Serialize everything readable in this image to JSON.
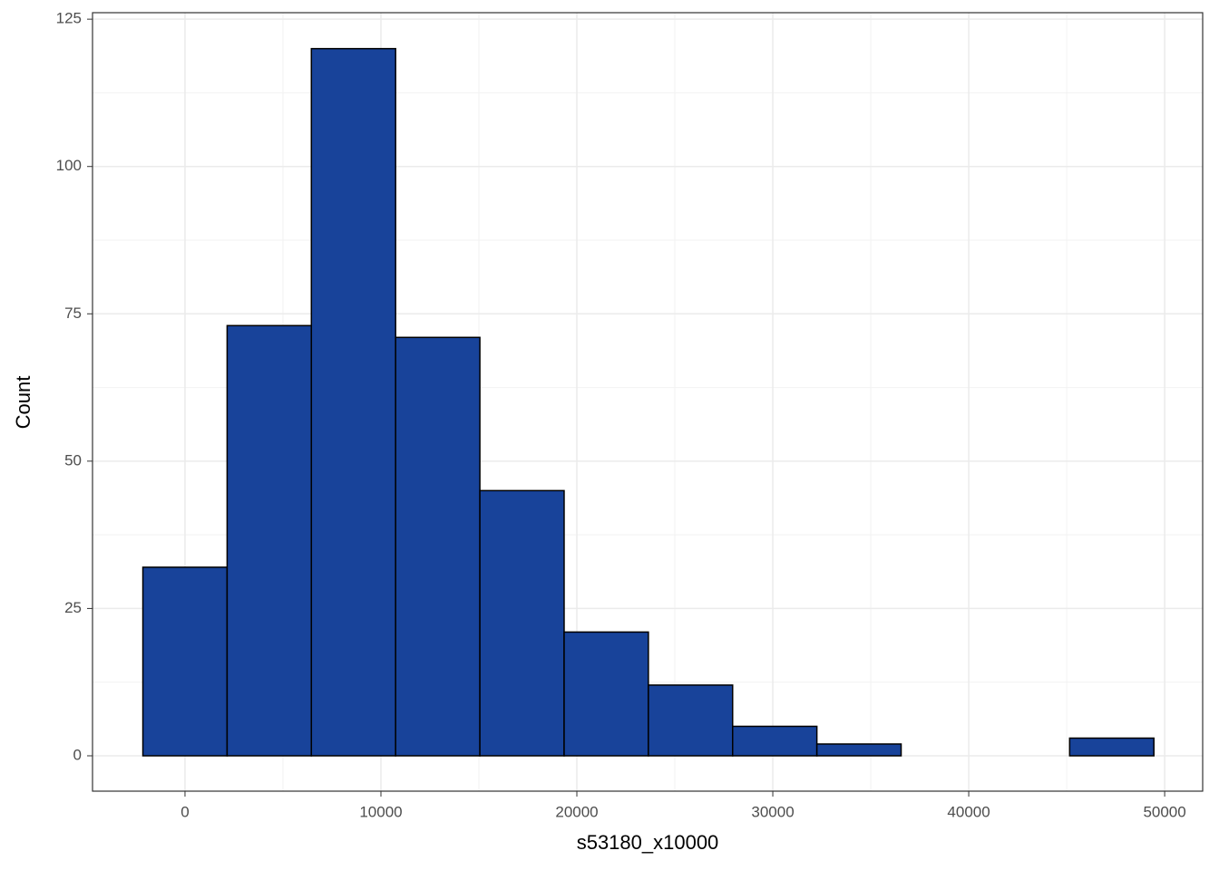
{
  "chart_data": {
    "type": "histogram",
    "x_label": "s53180_x10000",
    "y_label": "Count",
    "bins": [
      -2150,
      2150,
      6450,
      10750,
      15050,
      19350,
      23650,
      27950,
      32250,
      36550,
      40850,
      45150,
      49450
    ],
    "values": [
      32,
      73,
      120,
      71,
      45,
      21,
      12,
      5,
      2,
      0,
      0,
      3
    ],
    "color": "#18439a",
    "edgecolor": "#000000",
    "xlim": [
      -4720,
      51940
    ],
    "xticks": [
      0,
      10000,
      20000,
      30000,
      40000,
      50000
    ],
    "ylim": [
      -6,
      126.1
    ],
    "yticks": [
      0,
      25,
      50,
      75,
      100,
      125
    ],
    "grid": true
  }
}
